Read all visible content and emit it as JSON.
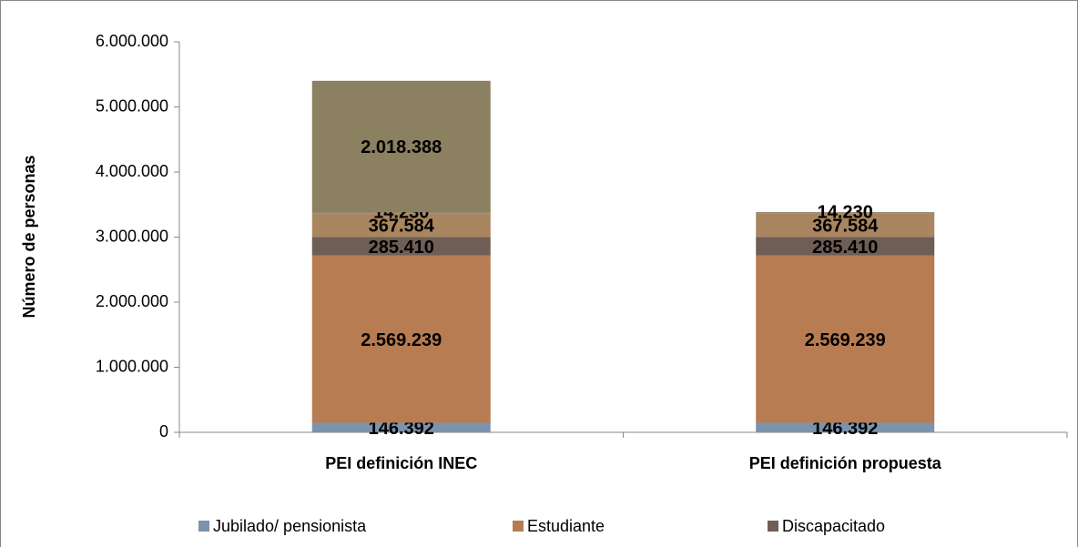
{
  "chart_data": {
    "type": "stacked_bar",
    "y_axis_label": "Número de personas",
    "categories": [
      "PEI definición INEC",
      "PEI definición propuesta"
    ],
    "ylim": [
      0,
      6000000
    ],
    "yticks": [
      0,
      {
        "value": 1000000,
        "label": "1.000.000"
      },
      {
        "value": 2000000,
        "label": "2.000.000"
      },
      {
        "value": 3000000,
        "label": "3.000.000"
      },
      {
        "value": 4000000,
        "label": "4.000.000"
      },
      {
        "value": 5000000,
        "label": "5.000.000"
      },
      {
        "value": 6000000,
        "label": "6.000.000"
      }
    ],
    "series": [
      {
        "name": "Jubilado/ pensionista",
        "color": "#7b93ad",
        "values": [
          146392,
          146392
        ],
        "value_labels": [
          "146.392",
          "146.392"
        ]
      },
      {
        "name": "Estudiante",
        "color": "#b77c52",
        "values": [
          2569239,
          2569239
        ],
        "value_labels": [
          "2.569.239",
          "2.569.239"
        ]
      },
      {
        "name": "Discapacitado",
        "color": "#6f5e55",
        "values": [
          285410,
          285410
        ],
        "value_labels": [
          "285.410",
          "285.410"
        ]
      },
      {
        "color": "#a9865f",
        "values": [
          367584,
          367584
        ],
        "value_labels": [
          "367.584",
          "367.584"
        ]
      },
      {
        "color": "#8a7a66",
        "values": [
          14230,
          14230
        ],
        "value_labels": [
          "14.230",
          "14.230"
        ]
      },
      {
        "color": "#8b8060",
        "values": [
          2018388,
          null
        ],
        "value_labels": [
          "2.018.388",
          null
        ]
      }
    ]
  }
}
